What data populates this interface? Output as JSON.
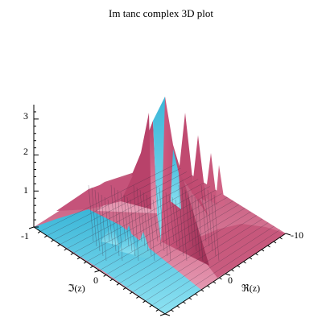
{
  "chart_data": {
    "type": "surface3d",
    "title": "Im tanc complex 3D plot",
    "z_axis": {
      "label": "",
      "ticks": [
        "1",
        "2",
        "3"
      ],
      "range": [
        0,
        3.4
      ]
    },
    "imag_axis": {
      "label": "ℑ(z)",
      "ticks": [
        "-1",
        "0"
      ],
      "range": [
        -1,
        1
      ]
    },
    "real_axis": {
      "label": "ℜ(z)",
      "ticks": [
        "0",
        "-10"
      ],
      "range": [
        -10,
        10
      ]
    },
    "surface": {
      "top_color": "#c84c72",
      "bottom_color": "#56c8e0",
      "mesh_lines": true,
      "peaks": [
        {
          "re": 0,
          "im": 0.0,
          "height": 3.4
        },
        {
          "re": -1.6,
          "im": 0.05,
          "height": 3.2
        },
        {
          "re": 1.6,
          "im": 0.05,
          "height": 2.9
        },
        {
          "re": -3.1,
          "im": 0.05,
          "height": 2.6
        },
        {
          "re": 3.1,
          "im": 0.05,
          "height": 2.4
        },
        {
          "re": -5,
          "im": 0.05,
          "height": 2.1
        },
        {
          "re": -7,
          "im": 0.05,
          "height": 1.7
        }
      ]
    }
  }
}
